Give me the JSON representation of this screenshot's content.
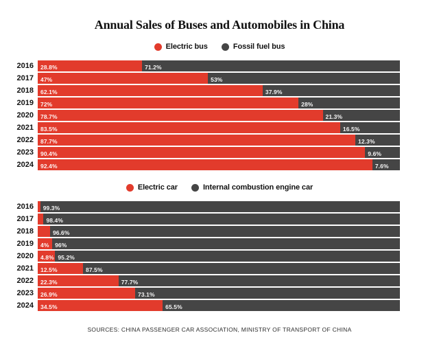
{
  "title": "Annual Sales of Buses and Automobiles in China",
  "footer": "SOURCES: CHINA PASSENGER CAR ASSOCIATION, MINISTRY OF TRANSPORT OF CHINA",
  "colors": {
    "electric": "#e23b2c",
    "fossil": "#454545",
    "bar_label": "#ffffff",
    "title_text": "#111111"
  },
  "chart_data": [
    {
      "type": "bar",
      "orientation": "horizontal",
      "stacked": true,
      "unit": "%",
      "xlim": [
        0,
        100
      ],
      "grid": false,
      "legend_position": "top",
      "categories": [
        "2016",
        "2017",
        "2018",
        "2019",
        "2020",
        "2021",
        "2022",
        "2023",
        "2024"
      ],
      "series": [
        {
          "name": "Electric bus",
          "color": "#e23b2c",
          "values": [
            28.8,
            47,
            62.1,
            72,
            78.7,
            83.5,
            87.7,
            90.4,
            92.4
          ],
          "labels": [
            "28.8%",
            "47%",
            "62.1%",
            "72%",
            "78.7%",
            "83.5%",
            "87.7%",
            "90.4%",
            "92.4%"
          ]
        },
        {
          "name": "Fossil fuel bus",
          "color": "#454545",
          "values": [
            71.2,
            53,
            37.9,
            28,
            21.3,
            16.5,
            12.3,
            9.6,
            7.6
          ],
          "labels": [
            "71.2%",
            "53%",
            "37.9%",
            "28%",
            "21.3%",
            "16.5%",
            "12.3%",
            "9.6%",
            "7.6%"
          ]
        }
      ]
    },
    {
      "type": "bar",
      "orientation": "horizontal",
      "stacked": true,
      "unit": "%",
      "xlim": [
        0,
        100
      ],
      "grid": false,
      "legend_position": "top",
      "categories": [
        "2016",
        "2017",
        "2018",
        "2019",
        "2020",
        "2021",
        "2022",
        "2023",
        "2024"
      ],
      "series": [
        {
          "name": "Electric car",
          "color": "#e23b2c",
          "values": [
            0.7,
            1.6,
            3.4,
            4,
            4.8,
            12.5,
            22.3,
            26.9,
            34.5
          ],
          "labels": [
            "",
            "",
            "",
            "4%",
            "4.8%",
            "12.5%",
            "22.3%",
            "26.9%",
            "34.5%"
          ]
        },
        {
          "name": "Internal combustion engine car",
          "color": "#454545",
          "values": [
            99.3,
            98.4,
            96.6,
            96,
            95.2,
            87.5,
            77.7,
            73.1,
            65.5
          ],
          "labels": [
            "99.3%",
            "98.4%",
            "96.6%",
            "96%",
            "95.2%",
            "87.5%",
            "77.7%",
            "73.1%",
            "65.5%"
          ]
        }
      ]
    }
  ]
}
